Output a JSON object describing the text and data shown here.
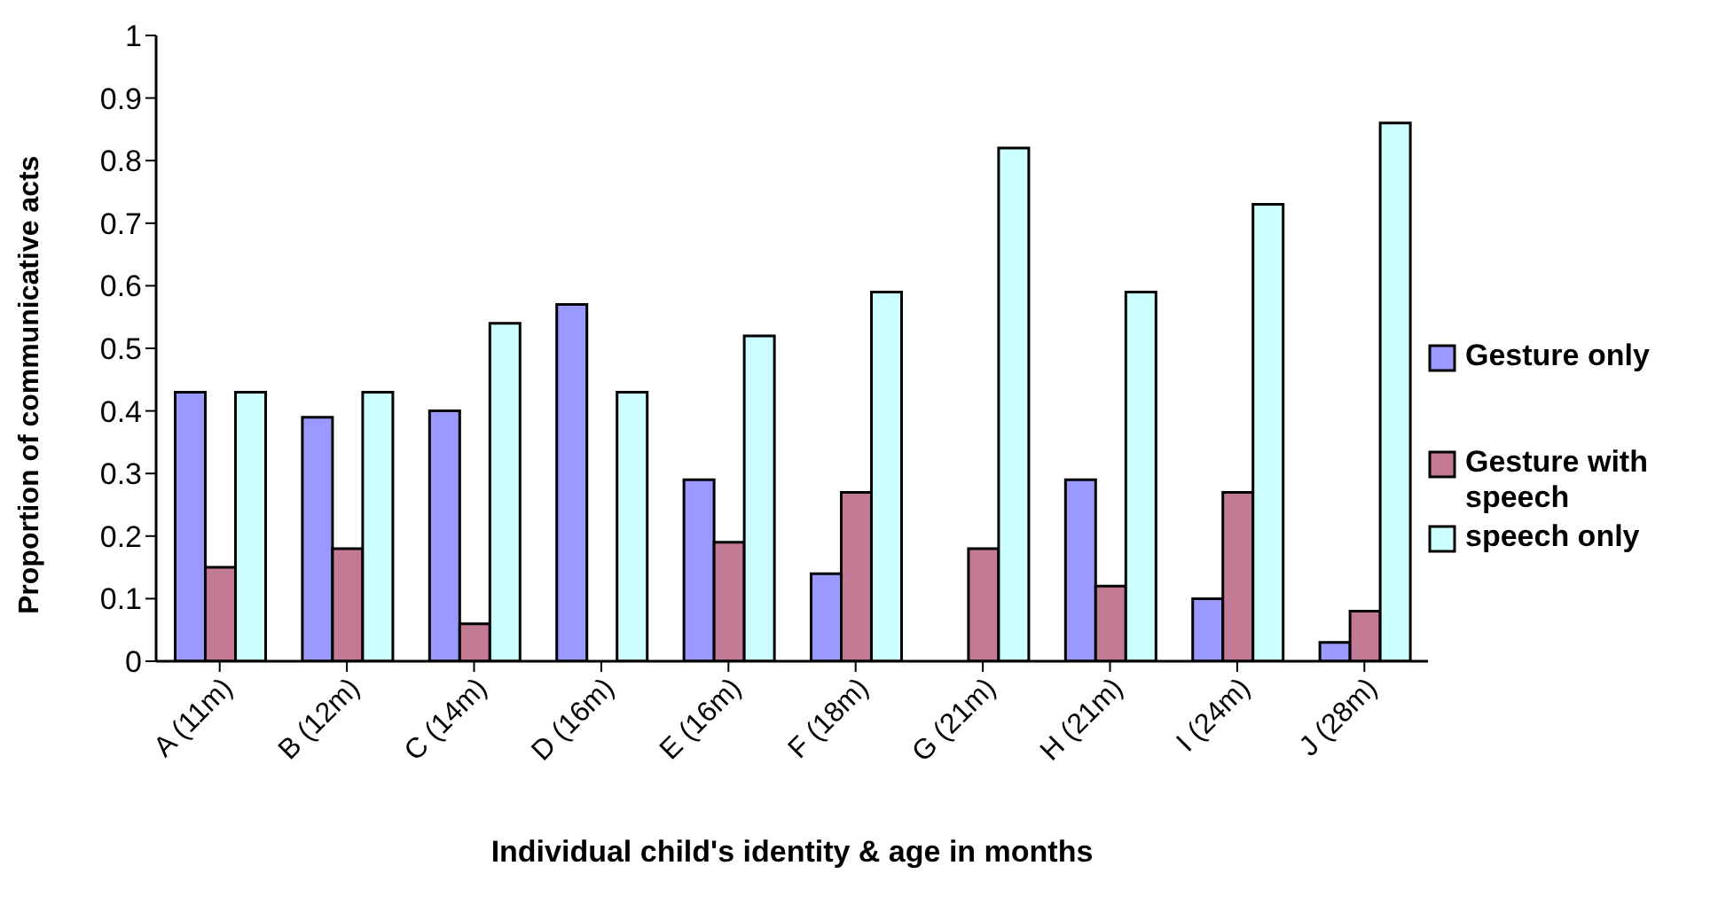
{
  "chart_data": {
    "type": "bar",
    "xlabel": "Individual child's identity & age in months",
    "ylabel": "Proportion of communicative acts",
    "categories": [
      "A (11m)",
      "B (12m)",
      "C (14m)",
      "D (16m)",
      "E (16m)",
      "F (18m)",
      "G (21m)",
      "H (21m)",
      "I (24m)",
      "J (28m)"
    ],
    "series": [
      {
        "name": "Gesture only",
        "color": "#9999ff",
        "values": [
          0.43,
          0.39,
          0.4,
          0.57,
          0.29,
          0.14,
          0,
          0.29,
          0.1,
          0.03
        ]
      },
      {
        "name": "Gesture with speech",
        "color": "#c27a95",
        "values": [
          0.15,
          0.18,
          0.06,
          0,
          0.19,
          0.27,
          0.18,
          0.12,
          0.27,
          0.08
        ]
      },
      {
        "name": "speech only",
        "color": "#ccffff",
        "values": [
          0.43,
          0.43,
          0.54,
          0.43,
          0.52,
          0.59,
          0.82,
          0.59,
          0.73,
          0.86
        ]
      }
    ],
    "ylim": [
      0,
      1
    ],
    "yticks": [
      0,
      0.1,
      0.2,
      0.3,
      0.4,
      0.5,
      0.6,
      0.7,
      0.8,
      0.9,
      1
    ],
    "grid": false,
    "legend": "right"
  }
}
